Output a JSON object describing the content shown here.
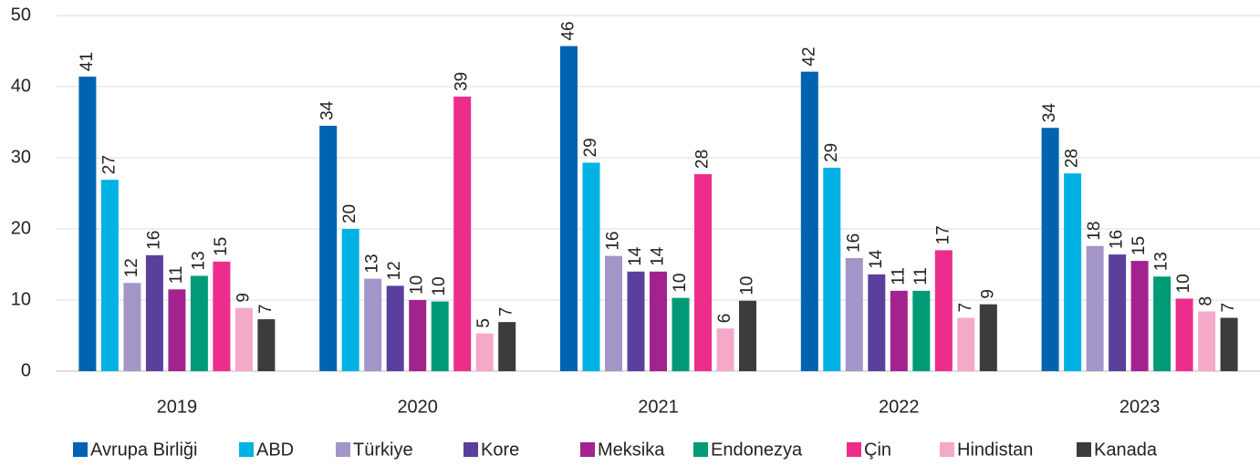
{
  "chart_data": {
    "type": "bar",
    "categories": [
      "2019",
      "2020",
      "2021",
      "2022",
      "2023"
    ],
    "ylim": [
      0,
      50
    ],
    "yticks": [
      0,
      10,
      20,
      30,
      40,
      50
    ],
    "grid": true,
    "legend": "bottom",
    "series": [
      {
        "name": "Avrupa Birliği",
        "color": "#0063b1",
        "values": [
          41.4,
          34.5,
          45.7,
          42.1,
          34.2
        ],
        "value_labels": [
          "41",
          "34",
          "46",
          "42",
          "34"
        ]
      },
      {
        "name": "ABD",
        "color": "#00b2e3",
        "values": [
          26.9,
          20.0,
          29.3,
          28.6,
          27.8
        ],
        "value_labels": [
          "27",
          "20",
          "29",
          "29",
          "28"
        ]
      },
      {
        "name": "Türkiye",
        "color": "#a495c8",
        "values": [
          12.4,
          13.0,
          16.2,
          15.9,
          17.6
        ],
        "value_labels": [
          "12",
          "13",
          "16",
          "16",
          "18"
        ]
      },
      {
        "name": "Kore",
        "color": "#5b3f9d",
        "values": [
          16.3,
          12.0,
          14.0,
          13.6,
          16.4
        ],
        "value_labels": [
          "16",
          "12",
          "14",
          "14",
          "16"
        ]
      },
      {
        "name": "Meksika",
        "color": "#a3238e",
        "values": [
          11.5,
          10.0,
          14.0,
          11.3,
          15.5
        ],
        "value_labels": [
          "11",
          "10",
          "14",
          "11",
          "15"
        ]
      },
      {
        "name": "Endonezya",
        "color": "#009a77",
        "values": [
          13.4,
          9.8,
          10.3,
          11.3,
          13.3
        ],
        "value_labels": [
          "13",
          "10",
          "10",
          "11",
          "13"
        ]
      },
      {
        "name": "Çin",
        "color": "#ec2d8c",
        "values": [
          15.4,
          38.6,
          27.7,
          17.0,
          10.2
        ],
        "value_labels": [
          "15",
          "39",
          "28",
          "17",
          "10"
        ]
      },
      {
        "name": "Hindistan",
        "color": "#f4a9c8",
        "values": [
          8.9,
          5.3,
          6.0,
          7.5,
          8.4
        ],
        "value_labels": [
          "9",
          "5",
          "6",
          "7",
          "8"
        ]
      },
      {
        "name": "Kanada",
        "color": "#3c3c3c",
        "values": [
          7.3,
          6.9,
          9.9,
          9.4,
          7.5
        ],
        "value_labels": [
          "7",
          "7",
          "10",
          "9",
          "7"
        ]
      }
    ]
  }
}
